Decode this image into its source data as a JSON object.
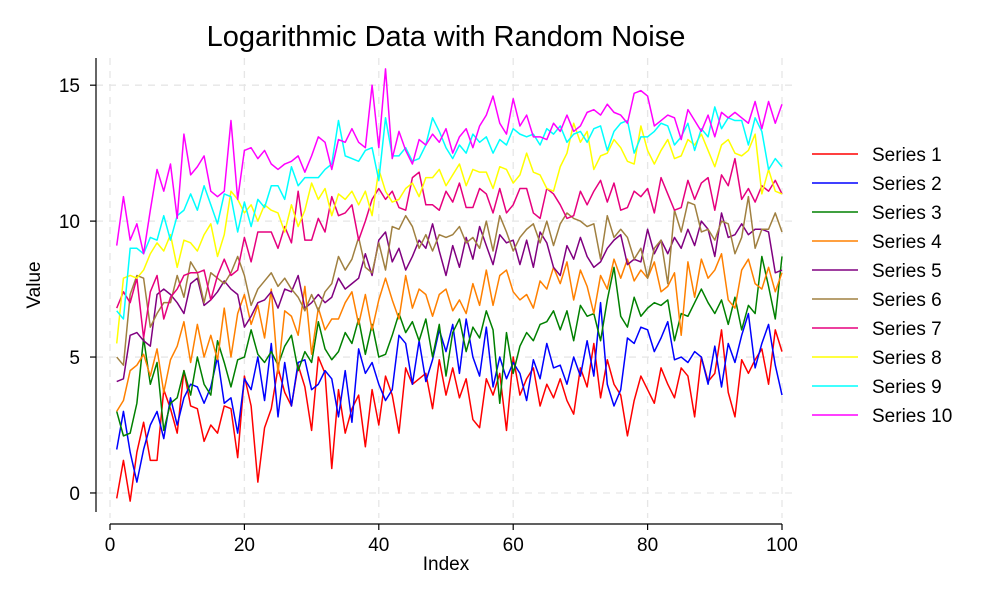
{
  "chart_data": {
    "type": "line",
    "title": "Logarithmic Data with Random Noise",
    "xlabel": "Index",
    "ylabel": "Value",
    "xlim": [
      0,
      100
    ],
    "ylim": [
      -0.7,
      16
    ],
    "xticks": [
      0,
      20,
      40,
      60,
      80,
      100
    ],
    "yticks": [
      0,
      5,
      10,
      15
    ],
    "grid": true,
    "legend_position": "right",
    "series": [
      {
        "name": "Series 1",
        "color": "#ff0000",
        "values": [
          -0.2,
          1.2,
          -0.3,
          1.5,
          2.6,
          1.2,
          1.2,
          3.8,
          3.1,
          2.2,
          4.5,
          3.2,
          3.1,
          1.9,
          2.5,
          2.2,
          3.2,
          3.1,
          1.3,
          4.3,
          3.2,
          0.4,
          2.4,
          3.1,
          4.6,
          3.7,
          3.2,
          4.7,
          3.9,
          2.3,
          5.0,
          4.4,
          0.9,
          3.8,
          2.2,
          3.1,
          3.6,
          1.7,
          3.8,
          2.5,
          4.3,
          3.6,
          2.2,
          4.6,
          4.0,
          4.2,
          4.4,
          3.1,
          4.9,
          3.6,
          4.6,
          3.5,
          4.2,
          2.7,
          2.4,
          4.2,
          3.6,
          4.4,
          2.3,
          5.0,
          3.6,
          4.2,
          4.6,
          3.2,
          4.0,
          3.5,
          4.2,
          3.4,
          2.9,
          4.6,
          3.9,
          5.5,
          3.5,
          4.9,
          4.0,
          3.6,
          2.1,
          3.4,
          4.3,
          3.8,
          3.3,
          4.6,
          4.0,
          3.5,
          4.6,
          4.3,
          2.8,
          5.0,
          4.1,
          4.4,
          6.0,
          3.7,
          2.8,
          4.9,
          4.4,
          4.9,
          5.3,
          4.0,
          6.0,
          5.2
        ]
      },
      {
        "name": "Series 2",
        "color": "#0000ff",
        "values": [
          1.6,
          3.0,
          1.5,
          0.4,
          1.6,
          2.5,
          3.0,
          2.0,
          3.5,
          2.5,
          3.5,
          4.0,
          3.9,
          3.3,
          3.9,
          5.0,
          3.3,
          3.5,
          2.2,
          4.2,
          3.8,
          5.0,
          3.4,
          5.5,
          2.8,
          4.8,
          3.2,
          4.8,
          4.9,
          3.8,
          4.0,
          4.5,
          4.2,
          2.8,
          4.5,
          2.6,
          5.3,
          4.4,
          4.8,
          4.0,
          3.4,
          3.8,
          5.8,
          5.5,
          4.0,
          5.6,
          4.1,
          4.9,
          6.0,
          5.2,
          6.2,
          4.4,
          6.4,
          5.0,
          4.3,
          6.1,
          3.9,
          5.0,
          4.2,
          4.8,
          4.4,
          3.4,
          4.9,
          4.2,
          5.5,
          4.6,
          4.7,
          4.0,
          5.0,
          4.3,
          5.6,
          4.3,
          7.0,
          4.0,
          3.2,
          3.8,
          5.7,
          5.5,
          6.1,
          6.0,
          5.2,
          5.7,
          6.3,
          4.9,
          5.0,
          4.8,
          5.2,
          5.0,
          4.0,
          5.4,
          3.9,
          5.5,
          4.8,
          5.8,
          6.6,
          4.6,
          5.5,
          6.2,
          4.7,
          3.6
        ]
      },
      {
        "name": "Series 3",
        "color": "#008000",
        "values": [
          3.0,
          2.1,
          2.2,
          3.3,
          5.7,
          4.0,
          4.8,
          2.3,
          3.3,
          3.5,
          4.5,
          3.6,
          5.0,
          4.0,
          3.6,
          5.6,
          4.8,
          3.9,
          4.9,
          5.0,
          6.0,
          5.1,
          4.8,
          5.2,
          4.7,
          5.4,
          5.8,
          4.5,
          5.2,
          4.8,
          6.3,
          5.3,
          4.9,
          5.2,
          5.9,
          5.5,
          6.4,
          5.1,
          6.2,
          5.0,
          5.1,
          5.8,
          6.6,
          5.9,
          6.3,
          5.6,
          6.4,
          5.0,
          6.2,
          4.3,
          5.9,
          6.4,
          5.2,
          6.1,
          5.7,
          6.7,
          6.0,
          3.3,
          5.9,
          4.4,
          5.4,
          5.9,
          5.6,
          6.2,
          6.3,
          6.7,
          6.0,
          6.7,
          5.6,
          6.9,
          6.5,
          6.6,
          5.6,
          7.1,
          8.3,
          6.5,
          6.1,
          7.2,
          6.5,
          6.8,
          7.0,
          6.9,
          7.1,
          5.6,
          6.6,
          6.5,
          7.0,
          7.5,
          7.0,
          6.6,
          7.1,
          6.2,
          7.2,
          6.0,
          6.9,
          6.6,
          8.7,
          7.6,
          6.4,
          8.7
        ]
      },
      {
        "name": "Series 4",
        "color": "#ff8000",
        "values": [
          3.0,
          3.4,
          4.5,
          4.7,
          5.1,
          4.3,
          5.3,
          3.7,
          4.9,
          5.4,
          6.3,
          4.8,
          6.2,
          5.0,
          5.8,
          4.9,
          6.8,
          5.0,
          6.6,
          7.3,
          6.2,
          6.9,
          5.7,
          7.5,
          4.4,
          6.7,
          6.5,
          5.8,
          7.6,
          5.1,
          6.8,
          6.0,
          6.4,
          6.4,
          7.0,
          7.4,
          6.2,
          7.3,
          6.0,
          7.1,
          7.9,
          7.1,
          6.4,
          8.0,
          6.8,
          7.5,
          7.3,
          6.5,
          7.3,
          7.5,
          6.7,
          7.1,
          6.6,
          7.7,
          6.9,
          8.2,
          6.9,
          8.0,
          8.2,
          7.4,
          7.1,
          7.3,
          6.8,
          7.8,
          7.5,
          8.3,
          7.7,
          8.5,
          7.1,
          8.2,
          7.6,
          6.6,
          8.0,
          7.5,
          8.6,
          7.9,
          8.6,
          7.8,
          8.2,
          7.9,
          8.5,
          7.4,
          7.6,
          8.1,
          5.8,
          8.5,
          7.2,
          8.6,
          7.9,
          8.2,
          8.8,
          7.1,
          6.8,
          8.2,
          8.6,
          7.7,
          7.5,
          8.3,
          7.4,
          8.1
        ]
      },
      {
        "name": "Series 5",
        "color": "#800080",
        "values": [
          4.1,
          4.2,
          5.8,
          5.9,
          5.6,
          5.4,
          7.3,
          7.5,
          7.3,
          7.0,
          6.6,
          7.7,
          7.9,
          6.9,
          7.1,
          7.4,
          7.8,
          7.5,
          7.3,
          6.1,
          6.5,
          7.0,
          7.1,
          7.4,
          6.8,
          7.5,
          7.4,
          8.0,
          6.8,
          7.0,
          7.3,
          7.0,
          7.2,
          7.9,
          7.5,
          7.7,
          7.9,
          8.8,
          8.0,
          9.3,
          9.6,
          8.5,
          9.0,
          8.2,
          8.7,
          9.3,
          9.0,
          9.9,
          8.9,
          8.0,
          9.1,
          8.3,
          9.4,
          8.6,
          9.8,
          9.1,
          8.4,
          9.5,
          9.2,
          9.3,
          8.4,
          9.3,
          8.3,
          9.6,
          9.2,
          8.3,
          8.0,
          9.1,
          8.6,
          9.4,
          8.7,
          8.3,
          8.5,
          9.0,
          9.3,
          9.5,
          8.4,
          8.6,
          8.5,
          9.7,
          8.8,
          9.3,
          8.8,
          9.4,
          9.0,
          9.7,
          9.1,
          10.0,
          9.7,
          8.7,
          10.3,
          9.4,
          9.5,
          9.9,
          9.5,
          9.7,
          9.7,
          9.6,
          8.1,
          8.2
        ]
      },
      {
        "name": "Series 6",
        "color": "#a08040",
        "values": [
          5.0,
          4.7,
          7.3,
          8.0,
          7.9,
          6.1,
          6.6,
          7.0,
          7.0,
          8.0,
          7.2,
          8.5,
          8.1,
          7.0,
          8.1,
          7.9,
          7.7,
          8.1,
          8.7,
          8.0,
          6.9,
          7.5,
          7.8,
          8.1,
          7.6,
          7.9,
          7.5,
          7.2,
          6.7,
          7.3,
          6.7,
          7.4,
          7.7,
          8.7,
          8.2,
          8.6,
          9.4,
          8.3,
          8.1,
          9.2,
          8.2,
          9.8,
          9.7,
          10.2,
          9.8,
          9.0,
          9.5,
          8.9,
          9.5,
          9.4,
          9.5,
          9.8,
          9.2,
          9.4,
          9.0,
          10.0,
          8.9,
          10.2,
          9.6,
          8.9,
          9.4,
          9.7,
          9.9,
          9.2,
          10.0,
          9.1,
          9.9,
          10.3,
          10.1,
          10.0,
          9.8,
          9.9,
          8.6,
          10.2,
          9.4,
          9.7,
          9.4,
          8.6,
          9.0,
          7.9,
          9.0,
          9.3,
          7.7,
          10.4,
          9.6,
          10.7,
          10.6,
          9.6,
          9.7,
          9.3,
          10.0,
          9.9,
          8.8,
          9.4,
          10.9,
          9.0,
          9.7,
          9.7,
          10.3,
          9.6
        ]
      },
      {
        "name": "Series 7",
        "color": "#e6007e",
        "values": [
          6.8,
          7.4,
          7.0,
          7.9,
          5.7,
          7.4,
          8.0,
          6.4,
          7.2,
          7.5,
          8.0,
          8.1,
          8.1,
          8.2,
          7.1,
          8.0,
          8.6,
          8.0,
          8.2,
          9.4,
          8.5,
          9.6,
          9.6,
          9.6,
          9.0,
          9.8,
          9.2,
          11.1,
          9.3,
          9.3,
          10.1,
          9.6,
          10.9,
          10.2,
          10.3,
          10.6,
          9.3,
          10.0,
          10.8,
          11.2,
          10.8,
          11.1,
          10.5,
          10.4,
          11.6,
          11.8,
          10.6,
          10.6,
          10.4,
          11.1,
          10.7,
          11.4,
          10.5,
          10.5,
          11.2,
          11.0,
          10.3,
          11.2,
          10.3,
          10.6,
          11.2,
          11.2,
          10.3,
          10.1,
          11.2,
          11.0,
          10.6,
          10.1,
          10.2,
          11.1,
          10.6,
          11.1,
          11.5,
          10.7,
          11.4,
          10.4,
          10.5,
          11.1,
          10.9,
          11.2,
          10.3,
          11.6,
          11.0,
          10.4,
          10.5,
          11.5,
          10.8,
          11.4,
          11.6,
          10.4,
          11.7,
          11.3,
          12.3,
          10.8,
          11.2,
          10.7,
          11.3,
          11.1,
          11.5,
          11.0
        ]
      },
      {
        "name": "Series 8",
        "color": "#ffff00",
        "values": [
          5.5,
          7.9,
          8.0,
          7.9,
          8.2,
          8.8,
          9.2,
          8.9,
          9.5,
          8.3,
          9.3,
          9.2,
          8.9,
          9.5,
          9.9,
          8.7,
          9.5,
          11.1,
          10.8,
          10.3,
          10.6,
          10.0,
          10.6,
          10.4,
          10.3,
          9.6,
          10.6,
          9.8,
          10.4,
          11.4,
          10.8,
          11.2,
          10.2,
          11.0,
          10.8,
          11.1,
          10.6,
          11.1,
          10.2,
          11.9,
          11.1,
          10.7,
          10.8,
          11.2,
          11.4,
          10.9,
          11.6,
          11.6,
          11.9,
          11.3,
          11.7,
          12.1,
          11.3,
          11.9,
          11.8,
          11.8,
          11.2,
          12.0,
          11.9,
          11.4,
          11.7,
          12.5,
          11.8,
          11.7,
          11.2,
          11.1,
          12.0,
          12.5,
          13.6,
          12.9,
          13.3,
          11.9,
          12.4,
          12.5,
          13.0,
          12.7,
          12.2,
          12.1,
          13.5,
          12.6,
          12.1,
          12.6,
          13.0,
          12.3,
          12.4,
          13.0,
          12.8,
          13.2,
          12.6,
          12.0,
          12.8,
          13.0,
          12.5,
          12.4,
          12.6,
          13.2,
          11.0,
          11.9,
          11.1,
          11.0
        ]
      },
      {
        "name": "Series 9",
        "color": "#00ffff",
        "values": [
          6.7,
          6.4,
          9.0,
          9.0,
          8.8,
          9.4,
          9.3,
          10.2,
          9.3,
          10.2,
          10.4,
          11.0,
          10.4,
          11.3,
          10.6,
          9.9,
          11.0,
          10.9,
          9.6,
          10.7,
          9.8,
          10.8,
          10.5,
          11.3,
          11.3,
          10.8,
          12.0,
          11.3,
          11.6,
          11.6,
          11.6,
          11.9,
          12.1,
          13.7,
          12.4,
          12.3,
          12.2,
          12.6,
          12.7,
          11.5,
          13.8,
          12.4,
          12.4,
          12.7,
          12.2,
          12.3,
          12.8,
          13.8,
          13.3,
          12.7,
          12.3,
          12.8,
          12.5,
          13.2,
          12.9,
          13.1,
          12.5,
          13.0,
          12.8,
          13.4,
          13.2,
          13.1,
          13.2,
          12.8,
          13.4,
          13.2,
          13.5,
          12.9,
          13.2,
          13.3,
          12.9,
          13.4,
          13.5,
          12.6,
          13.3,
          13.6,
          13.7,
          12.5,
          13.1,
          13.1,
          13.3,
          13.6,
          13.5,
          12.8,
          13.1,
          13.6,
          12.6,
          13.4,
          13.1,
          14.2,
          13.4,
          13.8,
          13.7,
          13.7,
          12.8,
          13.8,
          13.3,
          11.9,
          12.3,
          12.0
        ]
      },
      {
        "name": "Series 10",
        "color": "#ff00ff",
        "values": [
          9.1,
          10.9,
          9.3,
          9.9,
          8.8,
          10.4,
          11.9,
          11.1,
          12.1,
          10.1,
          13.2,
          11.7,
          12.0,
          12.4,
          11.1,
          10.9,
          11.1,
          13.7,
          10.8,
          12.6,
          12.7,
          12.3,
          12.6,
          12.1,
          11.9,
          12.1,
          12.2,
          12.4,
          11.8,
          12.4,
          13.1,
          12.9,
          11.9,
          13.0,
          12.9,
          13.4,
          12.9,
          12.7,
          15.0,
          12.7,
          15.6,
          12.3,
          13.3,
          12.6,
          12.1,
          13.0,
          12.8,
          13.2,
          12.9,
          13.4,
          12.5,
          13.1,
          13.4,
          12.7,
          13.5,
          13.9,
          14.6,
          13.6,
          13.2,
          14.5,
          13.5,
          13.9,
          13.1,
          13.1,
          13.0,
          13.6,
          13.3,
          13.9,
          13.3,
          13.5,
          14.0,
          14.1,
          13.9,
          14.3,
          14.0,
          13.9,
          13.6,
          14.7,
          14.8,
          14.6,
          13.5,
          13.7,
          13.9,
          13.8,
          13.0,
          14.1,
          13.7,
          13.3,
          13.9,
          13.1,
          14.0,
          13.8,
          14.0,
          13.8,
          13.6,
          14.4,
          13.4,
          14.4,
          13.6,
          14.3
        ]
      }
    ]
  }
}
